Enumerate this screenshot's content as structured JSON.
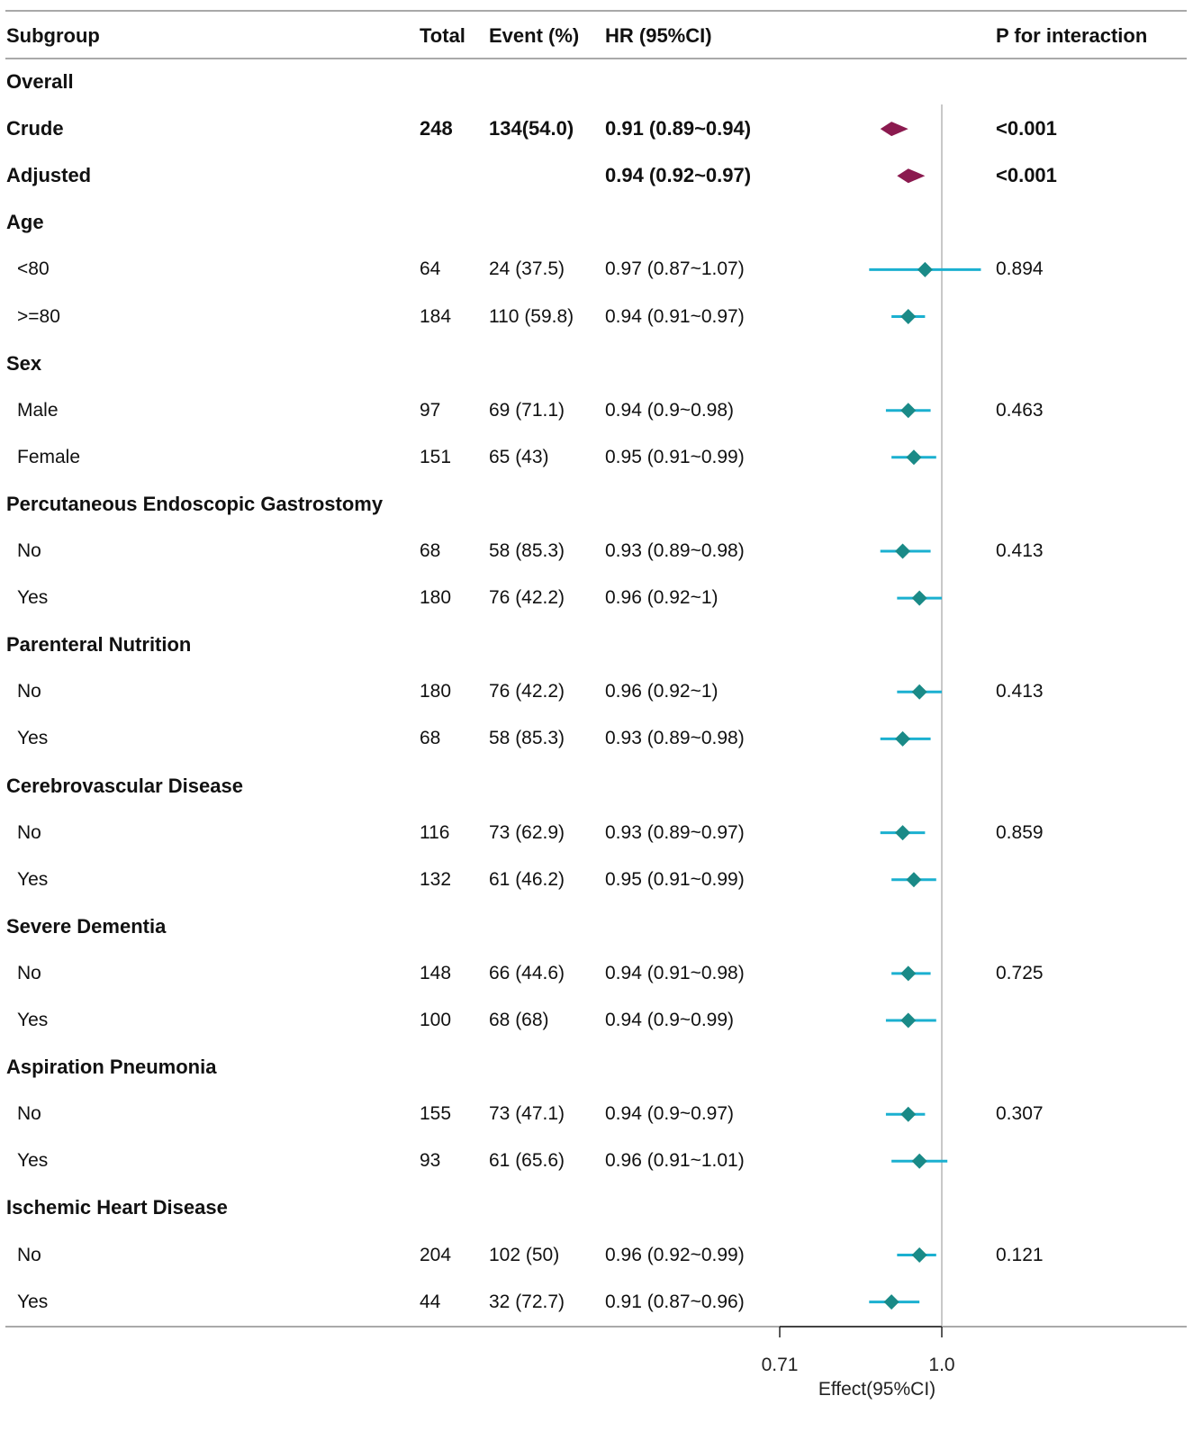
{
  "header": {
    "subgroup": "Subgroup",
    "total": "Total",
    "event": "Event (%)",
    "hr": "HR (95%CI)",
    "p": "P for interaction"
  },
  "rows": [
    {
      "label": "Overall",
      "type": "group"
    },
    {
      "label": "Crude",
      "type": "overall",
      "total": "248",
      "event": "134(54.0)",
      "hr": "0.91 (0.89~0.94)",
      "p": "<0.001"
    },
    {
      "label": "Adjusted",
      "type": "overall",
      "total": "",
      "event": "",
      "hr": "0.94 (0.92~0.97)",
      "p": "<0.001"
    },
    {
      "label": "Age",
      "type": "group"
    },
    {
      "label": "<80",
      "type": "sub",
      "total": "64",
      "event": "24 (37.5)",
      "hr": "0.97 (0.87~1.07)",
      "p": "0.894"
    },
    {
      "label": ">=80",
      "type": "sub",
      "total": "184",
      "event": "110 (59.8)",
      "hr": "0.94 (0.91~0.97)",
      "p": ""
    },
    {
      "label": "Sex",
      "type": "group"
    },
    {
      "label": "Male",
      "type": "sub",
      "total": "97",
      "event": "69 (71.1)",
      "hr": "0.94 (0.9~0.98)",
      "p": "0.463"
    },
    {
      "label": "Female",
      "type": "sub",
      "total": "151",
      "event": "65 (43)",
      "hr": "0.95 (0.91~0.99)",
      "p": ""
    },
    {
      "label": "Percutaneous Endoscopic Gastrostomy",
      "type": "group"
    },
    {
      "label": "No",
      "type": "sub",
      "total": "68",
      "event": "58 (85.3)",
      "hr": "0.93 (0.89~0.98)",
      "p": "0.413"
    },
    {
      "label": "Yes",
      "type": "sub",
      "total": "180",
      "event": "76 (42.2)",
      "hr": "0.96 (0.92~1)",
      "p": ""
    },
    {
      "label": "Parenteral Nutrition",
      "type": "group"
    },
    {
      "label": "No",
      "type": "sub",
      "total": "180",
      "event": "76 (42.2)",
      "hr": "0.96 (0.92~1)",
      "p": "0.413"
    },
    {
      "label": "Yes",
      "type": "sub",
      "total": "68",
      "event": "58 (85.3)",
      "hr": "0.93 (0.89~0.98)",
      "p": ""
    },
    {
      "label": "Cerebrovascular Disease",
      "type": "group"
    },
    {
      "label": "No",
      "type": "sub",
      "total": "116",
      "event": "73 (62.9)",
      "hr": "0.93 (0.89~0.97)",
      "p": "0.859"
    },
    {
      "label": "Yes",
      "type": "sub",
      "total": "132",
      "event": "61 (46.2)",
      "hr": "0.95 (0.91~0.99)",
      "p": ""
    },
    {
      "label": "Severe Dementia",
      "type": "group"
    },
    {
      "label": "No",
      "type": "sub",
      "total": "148",
      "event": "66 (44.6)",
      "hr": "0.94 (0.91~0.98)",
      "p": "0.725"
    },
    {
      "label": "Yes",
      "type": "sub",
      "total": "100",
      "event": "68 (68)",
      "hr": "0.94 (0.9~0.99)",
      "p": ""
    },
    {
      "label": "Aspiration Pneumonia",
      "type": "group"
    },
    {
      "label": "No",
      "type": "sub",
      "total": "155",
      "event": "73 (47.1)",
      "hr": "0.94 (0.9~0.97)",
      "p": "0.307"
    },
    {
      "label": "Yes",
      "type": "sub",
      "total": "93",
      "event": "61 (65.6)",
      "hr": "0.96 (0.91~1.01)",
      "p": ""
    },
    {
      "label": "Ischemic Heart Disease",
      "type": "group"
    },
    {
      "label": "No",
      "type": "sub",
      "total": "204",
      "event": "102 (50)",
      "hr": "0.96 (0.92~0.99)",
      "p": "0.121"
    },
    {
      "label": "Yes",
      "type": "sub",
      "total": "44",
      "event": "32 (72.7)",
      "hr": "0.91 (0.87~0.96)",
      "p": ""
    }
  ],
  "chart_data": {
    "type": "forest",
    "xlabel": "Effect(95%CI)",
    "xlim": [
      0.71,
      1.0
    ],
    "xticks": [
      0.71,
      1.0
    ],
    "xtick_labels": [
      "0.71",
      "1.0"
    ],
    "reference_line": 1.0,
    "colors": {
      "overall": "#8b1a4f",
      "point": "#1a8a87",
      "ci": "#1bb0d0",
      "ref": "#c8c8c8"
    },
    "points": [
      {
        "row": 1,
        "name": "Crude",
        "est": 0.91,
        "lo": 0.89,
        "hi": 0.94,
        "style": "overall"
      },
      {
        "row": 2,
        "name": "Adjusted",
        "est": 0.94,
        "lo": 0.92,
        "hi": 0.97,
        "style": "overall"
      },
      {
        "row": 4,
        "name": "Age <80",
        "est": 0.97,
        "lo": 0.87,
        "hi": 1.07
      },
      {
        "row": 5,
        "name": "Age >=80",
        "est": 0.94,
        "lo": 0.91,
        "hi": 0.97
      },
      {
        "row": 7,
        "name": "Male",
        "est": 0.94,
        "lo": 0.9,
        "hi": 0.98
      },
      {
        "row": 8,
        "name": "Female",
        "est": 0.95,
        "lo": 0.91,
        "hi": 0.99
      },
      {
        "row": 10,
        "name": "PEG No",
        "est": 0.93,
        "lo": 0.89,
        "hi": 0.98
      },
      {
        "row": 11,
        "name": "PEG Yes",
        "est": 0.96,
        "lo": 0.92,
        "hi": 1.0
      },
      {
        "row": 13,
        "name": "PN No",
        "est": 0.96,
        "lo": 0.92,
        "hi": 1.0
      },
      {
        "row": 14,
        "name": "PN Yes",
        "est": 0.93,
        "lo": 0.89,
        "hi": 0.98
      },
      {
        "row": 16,
        "name": "CVD No",
        "est": 0.93,
        "lo": 0.89,
        "hi": 0.97
      },
      {
        "row": 17,
        "name": "CVD Yes",
        "est": 0.95,
        "lo": 0.91,
        "hi": 0.99
      },
      {
        "row": 19,
        "name": "Dementia No",
        "est": 0.94,
        "lo": 0.91,
        "hi": 0.98
      },
      {
        "row": 20,
        "name": "Dementia Yes",
        "est": 0.94,
        "lo": 0.9,
        "hi": 0.99
      },
      {
        "row": 22,
        "name": "Pneumonia No",
        "est": 0.94,
        "lo": 0.9,
        "hi": 0.97
      },
      {
        "row": 23,
        "name": "Pneumonia Yes",
        "est": 0.96,
        "lo": 0.91,
        "hi": 1.01
      },
      {
        "row": 25,
        "name": "IHD No",
        "est": 0.96,
        "lo": 0.92,
        "hi": 0.99
      },
      {
        "row": 26,
        "name": "IHD Yes",
        "est": 0.91,
        "lo": 0.87,
        "hi": 0.96
      }
    ]
  }
}
